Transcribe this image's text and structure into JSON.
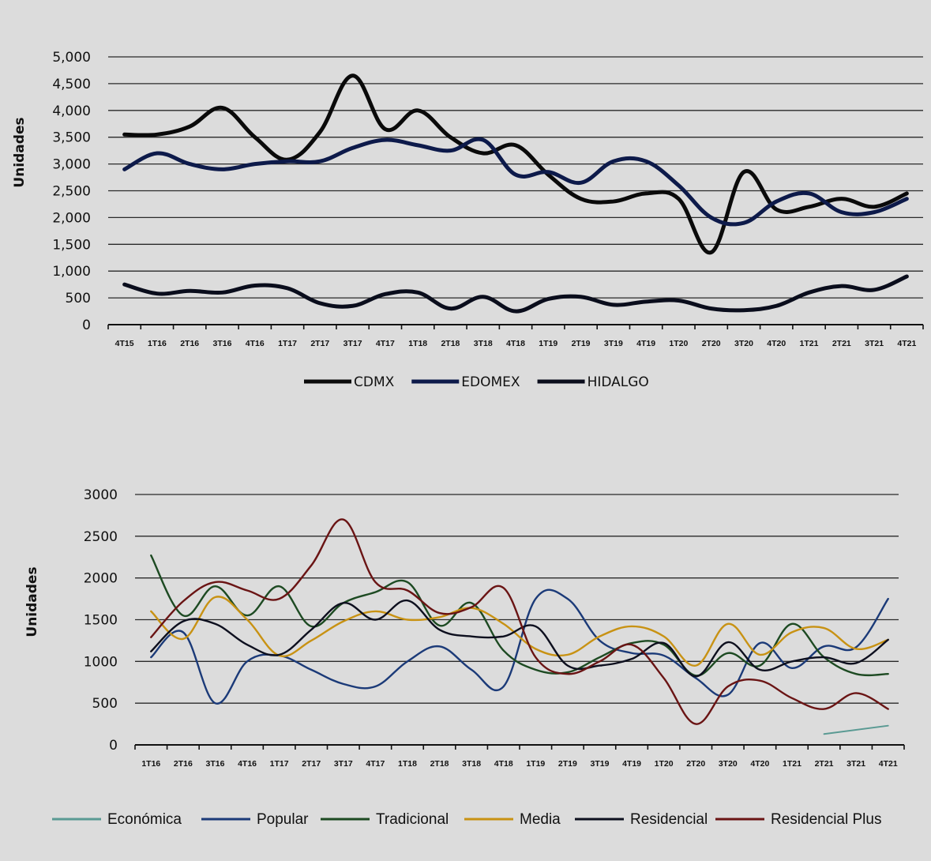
{
  "chart_data": [
    {
      "type": "line",
      "title": "",
      "xlabel": "",
      "ylabel": "Unidades",
      "ylim": [
        0,
        5000
      ],
      "yticks": [
        "0",
        "500",
        "1,000",
        "1,500",
        "2,000",
        "2,500",
        "3,000",
        "3,500",
        "4,000",
        "4,500",
        "5,000"
      ],
      "ytick_values": [
        0,
        500,
        1000,
        1500,
        2000,
        2500,
        3000,
        3500,
        4000,
        4500,
        5000
      ],
      "grid": true,
      "legend_position": "bottom-center",
      "categories": [
        "4T15",
        "1T16",
        "2T16",
        "3T16",
        "4T16",
        "1T17",
        "2T17",
        "3T17",
        "4T17",
        "1T18",
        "2T18",
        "3T18",
        "4T18",
        "1T19",
        "2T19",
        "3T19",
        "4T19",
        "1T20",
        "2T20",
        "3T20",
        "4T20",
        "1T21",
        "2T21",
        "3T21",
        "4T21"
      ],
      "series": [
        {
          "name": "CDMX",
          "color": "#0a0a0a",
          "values": [
            3550,
            3550,
            3700,
            4050,
            3500,
            3080,
            3600,
            4650,
            3650,
            4000,
            3500,
            3200,
            3350,
            2800,
            2350,
            2300,
            2450,
            2350,
            1350,
            2850,
            2150,
            2200,
            2350,
            2200,
            2450
          ]
        },
        {
          "name": "EDOMEX",
          "color": "#0d1a4a",
          "values": [
            2900,
            3200,
            3000,
            2900,
            3000,
            3050,
            3050,
            3300,
            3450,
            3350,
            3250,
            3450,
            2800,
            2850,
            2650,
            3050,
            3050,
            2600,
            2000,
            1900,
            2300,
            2450,
            2100,
            2100,
            2350
          ]
        },
        {
          "name": "HIDALGO",
          "color": "#0a0d1c",
          "values": [
            750,
            580,
            630,
            600,
            730,
            680,
            400,
            350,
            570,
            600,
            300,
            520,
            250,
            480,
            520,
            370,
            430,
            450,
            300,
            270,
            350,
            600,
            720,
            650,
            900
          ]
        }
      ]
    },
    {
      "type": "line",
      "title": "",
      "xlabel": "",
      "ylabel": "Unidades",
      "ylim": [
        0,
        3000
      ],
      "yticks": [
        "0",
        "500",
        "1000",
        "1500",
        "2000",
        "2500",
        "3000"
      ],
      "ytick_values": [
        0,
        500,
        1000,
        1500,
        2000,
        2500,
        3000
      ],
      "grid": true,
      "legend_position": "bottom-center",
      "categories": [
        "1T16",
        "2T16",
        "3T16",
        "4T16",
        "1T17",
        "2T17",
        "3T17",
        "4T17",
        "1T18",
        "2T18",
        "3T18",
        "4T18",
        "1T19",
        "2T19",
        "3T19",
        "4T19",
        "1T20",
        "2T20",
        "3T20",
        "4T20",
        "1T21",
        "2T21",
        "3T21",
        "4T21"
      ],
      "series": [
        {
          "name": "Económica",
          "color": "#5a9a93",
          "values": [
            null,
            null,
            null,
            null,
            null,
            null,
            null,
            null,
            null,
            null,
            null,
            null,
            null,
            null,
            null,
            null,
            null,
            null,
            null,
            null,
            null,
            130,
            180,
            230
          ]
        },
        {
          "name": "Popular",
          "color": "#1b3a78",
          "values": [
            1050,
            1350,
            500,
            1000,
            1070,
            900,
            730,
            700,
            1000,
            1180,
            900,
            700,
            1750,
            1750,
            1250,
            1100,
            1070,
            800,
            600,
            1220,
            920,
            1180,
            1170,
            1750
          ]
        },
        {
          "name": "Tradicional",
          "color": "#1d4a22",
          "values": [
            2270,
            1550,
            1900,
            1550,
            1900,
            1420,
            1700,
            1830,
            1950,
            1430,
            1700,
            1130,
            900,
            870,
            1050,
            1220,
            1200,
            830,
            1100,
            950,
            1450,
            1050,
            850,
            850
          ]
        },
        {
          "name": "Media",
          "color": "#c89213",
          "values": [
            1600,
            1270,
            1770,
            1500,
            1070,
            1250,
            1480,
            1600,
            1500,
            1530,
            1640,
            1450,
            1150,
            1080,
            1300,
            1420,
            1300,
            950,
            1450,
            1080,
            1350,
            1400,
            1150,
            1260
          ]
        },
        {
          "name": "Residencial",
          "color": "#0d0f1e",
          "values": [
            1120,
            1480,
            1450,
            1200,
            1080,
            1380,
            1700,
            1500,
            1730,
            1380,
            1300,
            1300,
            1420,
            950,
            950,
            1030,
            1220,
            820,
            1230,
            900,
            1000,
            1050,
            980,
            1260
          ]
        },
        {
          "name": "Residencial Plus",
          "color": "#6a1414",
          "values": [
            1290,
            1720,
            1950,
            1850,
            1750,
            2150,
            2700,
            1950,
            1850,
            1580,
            1650,
            1880,
            1050,
            850,
            1000,
            1200,
            800,
            250,
            700,
            770,
            560,
            430,
            620,
            430
          ]
        }
      ]
    }
  ]
}
